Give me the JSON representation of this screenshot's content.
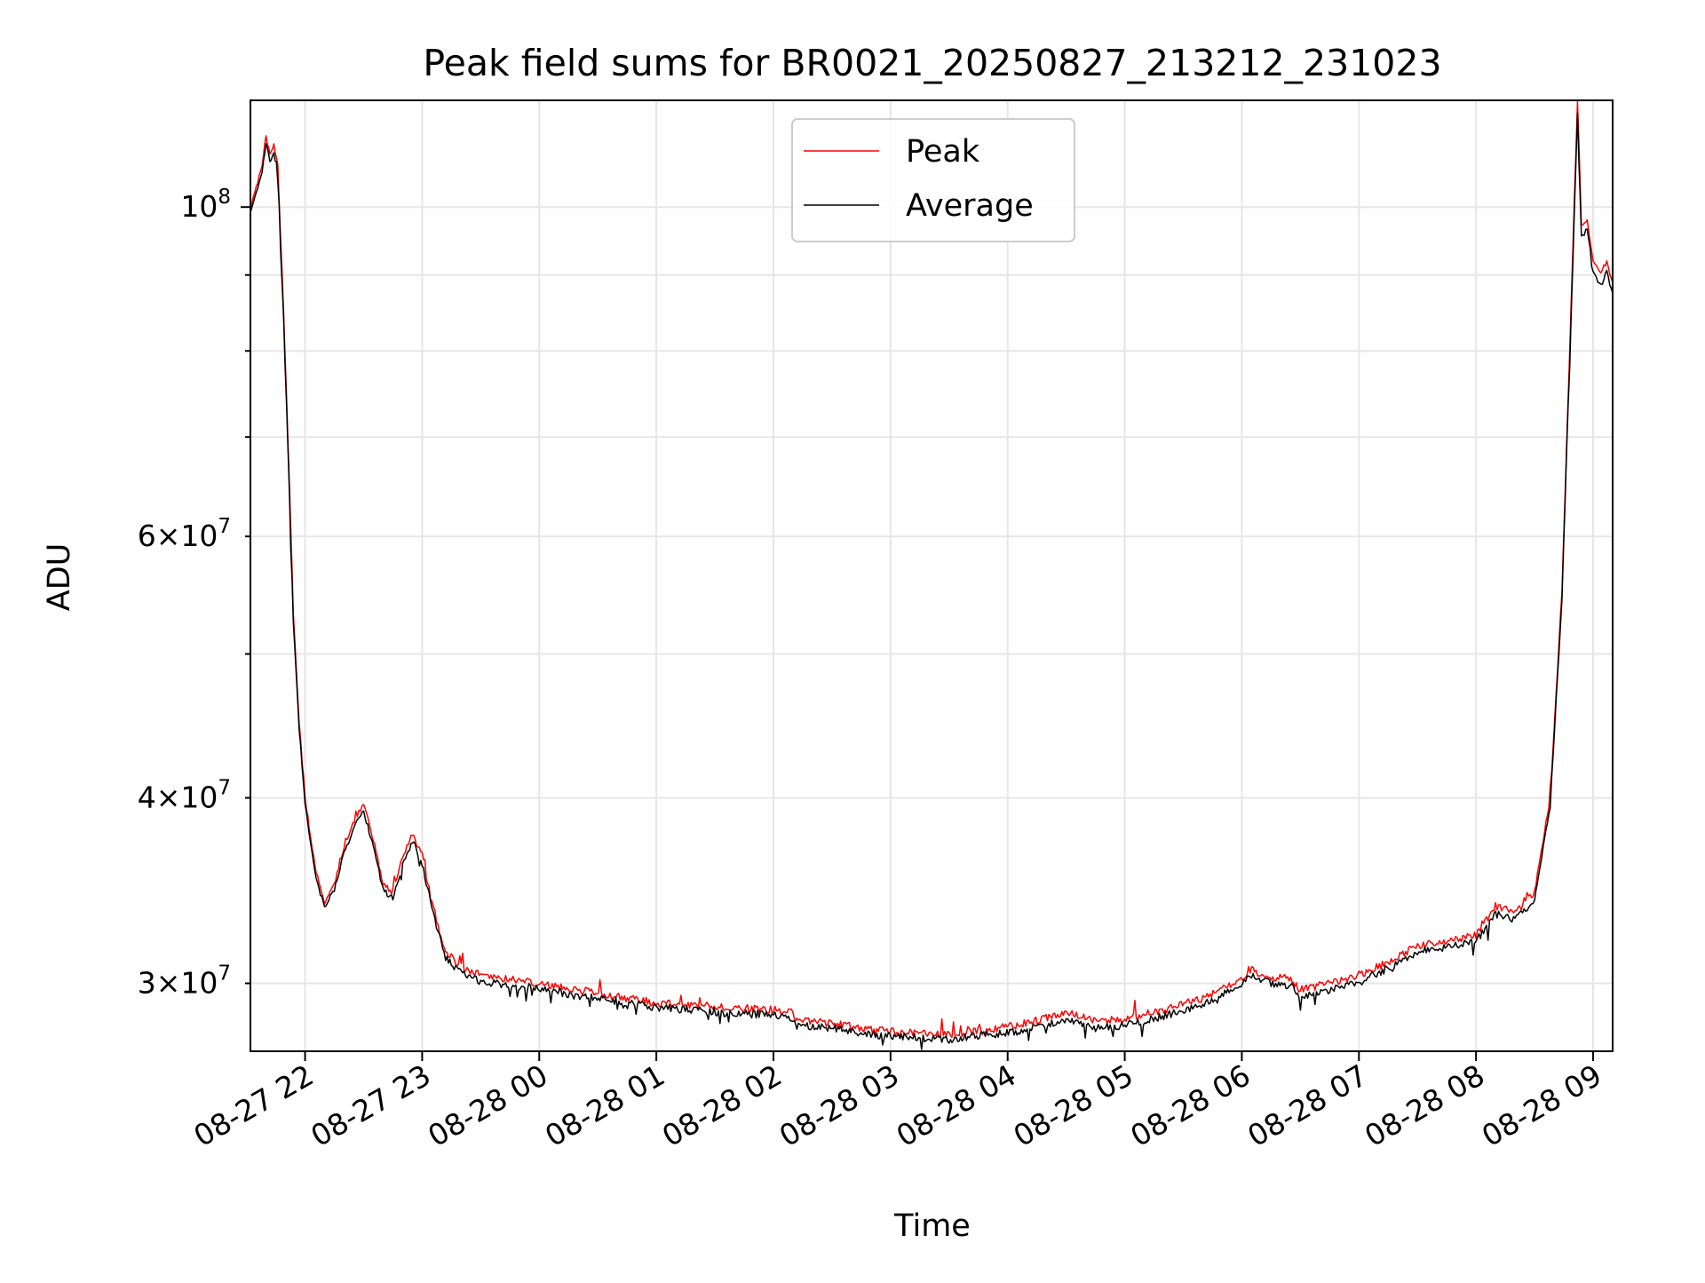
{
  "chart_data": {
    "type": "line",
    "title": "Peak field sums for BR0021_20250827_213212_231023",
    "xlabel": "Time",
    "ylabel": "ADU",
    "y_scale": "log",
    "ylim": [
      27000000,
      118000000
    ],
    "xlim": [
      "2025-08-27T21:32",
      "2025-08-28T09:10"
    ],
    "x_ticks": [
      {
        "value": "2025-08-27T22:00",
        "label": "08-27 22"
      },
      {
        "value": "2025-08-27T23:00",
        "label": "08-27 23"
      },
      {
        "value": "2025-08-28T00:00",
        "label": "08-28 00"
      },
      {
        "value": "2025-08-28T01:00",
        "label": "08-28 01"
      },
      {
        "value": "2025-08-28T02:00",
        "label": "08-28 02"
      },
      {
        "value": "2025-08-28T03:00",
        "label": "08-28 03"
      },
      {
        "value": "2025-08-28T04:00",
        "label": "08-28 04"
      },
      {
        "value": "2025-08-28T05:00",
        "label": "08-28 05"
      },
      {
        "value": "2025-08-28T06:00",
        "label": "08-28 06"
      },
      {
        "value": "2025-08-28T07:00",
        "label": "08-28 07"
      },
      {
        "value": "2025-08-28T08:00",
        "label": "08-28 08"
      },
      {
        "value": "2025-08-28T09:00",
        "label": "08-28 09"
      }
    ],
    "y_ticks_major": [
      {
        "value": 100000000,
        "base": "10",
        "exp": "8"
      }
    ],
    "y_ticks_minor_labeled": [
      {
        "value": 30000000,
        "coef": "3",
        "base": "10",
        "exp": "7"
      },
      {
        "value": 40000000,
        "coef": "4",
        "base": "10",
        "exp": "7"
      },
      {
        "value": 60000000,
        "coef": "6",
        "base": "10",
        "exp": "7"
      }
    ],
    "y_ticks_minor_unlabeled": [
      50000000,
      70000000,
      80000000,
      90000000
    ],
    "grid": true,
    "legend": {
      "placement": "upper center"
    },
    "series": [
      {
        "name": "Peak",
        "color": "#ff0000",
        "points": [
          [
            "2025-08-27T21:32",
            100000000
          ],
          [
            "2025-08-27T21:35",
            103000000
          ],
          [
            "2025-08-27T21:38",
            107000000
          ],
          [
            "2025-08-27T21:40",
            112000000
          ],
          [
            "2025-08-27T21:42",
            108000000
          ],
          [
            "2025-08-27T21:44",
            110000000
          ],
          [
            "2025-08-27T21:46",
            107000000
          ],
          [
            "2025-08-27T21:49",
            85000000
          ],
          [
            "2025-08-27T21:52",
            65000000
          ],
          [
            "2025-08-27T21:54",
            53000000
          ],
          [
            "2025-08-27T21:57",
            45000000
          ],
          [
            "2025-08-27T22:00",
            40000000
          ],
          [
            "2025-08-27T22:05",
            36000000
          ],
          [
            "2025-08-27T22:10",
            34000000
          ],
          [
            "2025-08-27T22:15",
            35000000
          ],
          [
            "2025-08-27T22:20",
            37000000
          ],
          [
            "2025-08-27T22:26",
            38800000
          ],
          [
            "2025-08-27T22:30",
            39600000
          ],
          [
            "2025-08-27T22:35",
            37500000
          ],
          [
            "2025-08-27T22:40",
            35000000
          ],
          [
            "2025-08-27T22:45",
            34500000
          ],
          [
            "2025-08-27T22:50",
            36500000
          ],
          [
            "2025-08-27T22:55",
            37800000
          ],
          [
            "2025-08-27T23:00",
            36500000
          ],
          [
            "2025-08-27T23:05",
            34000000
          ],
          [
            "2025-08-27T23:12",
            31500000
          ],
          [
            "2025-08-27T23:20",
            30800000
          ],
          [
            "2025-08-27T23:30",
            30400000
          ],
          [
            "2025-08-27T23:45",
            30200000
          ],
          [
            "2025-08-28T00:00",
            30000000
          ],
          [
            "2025-08-28T00:20",
            29700000
          ],
          [
            "2025-08-28T00:40",
            29400000
          ],
          [
            "2025-08-28T01:00",
            29100000
          ],
          [
            "2025-08-28T01:20",
            29000000
          ],
          [
            "2025-08-28T01:40",
            28900000
          ],
          [
            "2025-08-28T02:00",
            28800000
          ],
          [
            "2025-08-28T02:10",
            28700000
          ],
          [
            "2025-08-28T02:12",
            28300000
          ],
          [
            "2025-08-28T02:30",
            28200000
          ],
          [
            "2025-08-28T02:50",
            27900000
          ],
          [
            "2025-08-28T03:10",
            27800000
          ],
          [
            "2025-08-28T03:30",
            27700000
          ],
          [
            "2025-08-28T03:50",
            27900000
          ],
          [
            "2025-08-28T04:10",
            28200000
          ],
          [
            "2025-08-28T04:30",
            28700000
          ],
          [
            "2025-08-28T04:45",
            28300000
          ],
          [
            "2025-08-28T05:00",
            28400000
          ],
          [
            "2025-08-28T05:20",
            28800000
          ],
          [
            "2025-08-28T05:40",
            29300000
          ],
          [
            "2025-08-28T05:55",
            30000000
          ],
          [
            "2025-08-28T06:05",
            30600000
          ],
          [
            "2025-08-28T06:15",
            30300000
          ],
          [
            "2025-08-28T06:25",
            30200000
          ],
          [
            "2025-08-28T06:30",
            29700000
          ],
          [
            "2025-08-28T06:45",
            30000000
          ],
          [
            "2025-08-28T07:00",
            30400000
          ],
          [
            "2025-08-28T07:15",
            31000000
          ],
          [
            "2025-08-28T07:30",
            31800000
          ],
          [
            "2025-08-28T07:45",
            32000000
          ],
          [
            "2025-08-28T08:00",
            32300000
          ],
          [
            "2025-08-28T08:10",
            33800000
          ],
          [
            "2025-08-28T08:20",
            33500000
          ],
          [
            "2025-08-28T08:30",
            34500000
          ],
          [
            "2025-08-28T08:38",
            40000000
          ],
          [
            "2025-08-28T08:44",
            55000000
          ],
          [
            "2025-08-28T08:48",
            80000000
          ],
          [
            "2025-08-28T08:52",
            118000000
          ],
          [
            "2025-08-28T08:54",
            97000000
          ],
          [
            "2025-08-28T08:57",
            98000000
          ],
          [
            "2025-08-28T09:00",
            92000000
          ],
          [
            "2025-08-28T09:04",
            90000000
          ],
          [
            "2025-08-28T09:07",
            92000000
          ],
          [
            "2025-08-28T09:10",
            89000000
          ]
        ]
      },
      {
        "name": "Average",
        "color": "#000000",
        "points": [
          [
            "2025-08-27T21:32",
            99500000
          ],
          [
            "2025-08-27T21:35",
            102000000
          ],
          [
            "2025-08-27T21:38",
            106000000
          ],
          [
            "2025-08-27T21:40",
            110500000
          ],
          [
            "2025-08-27T21:42",
            107000000
          ],
          [
            "2025-08-27T21:44",
            108500000
          ],
          [
            "2025-08-27T21:46",
            106000000
          ],
          [
            "2025-08-27T21:49",
            84000000
          ],
          [
            "2025-08-27T21:52",
            64000000
          ],
          [
            "2025-08-27T21:54",
            52500000
          ],
          [
            "2025-08-27T21:57",
            44500000
          ],
          [
            "2025-08-27T22:00",
            39600000
          ],
          [
            "2025-08-27T22:05",
            35600000
          ],
          [
            "2025-08-27T22:10",
            33700000
          ],
          [
            "2025-08-27T22:15",
            34700000
          ],
          [
            "2025-08-27T22:20",
            36700000
          ],
          [
            "2025-08-27T22:26",
            38400000
          ],
          [
            "2025-08-27T22:30",
            39200000
          ],
          [
            "2025-08-27T22:35",
            37100000
          ],
          [
            "2025-08-27T22:40",
            34700000
          ],
          [
            "2025-08-27T22:45",
            34200000
          ],
          [
            "2025-08-27T22:50",
            36100000
          ],
          [
            "2025-08-27T22:55",
            37400000
          ],
          [
            "2025-08-27T23:00",
            36100000
          ],
          [
            "2025-08-27T23:05",
            33700000
          ],
          [
            "2025-08-27T23:12",
            31200000
          ],
          [
            "2025-08-27T23:20",
            30500000
          ],
          [
            "2025-08-27T23:30",
            30100000
          ],
          [
            "2025-08-27T23:45",
            29900000
          ],
          [
            "2025-08-28T00:00",
            29800000
          ],
          [
            "2025-08-28T00:20",
            29400000
          ],
          [
            "2025-08-28T00:40",
            29200000
          ],
          [
            "2025-08-28T01:00",
            28900000
          ],
          [
            "2025-08-28T01:20",
            28800000
          ],
          [
            "2025-08-28T01:40",
            28600000
          ],
          [
            "2025-08-28T02:00",
            28600000
          ],
          [
            "2025-08-28T02:10",
            28400000
          ],
          [
            "2025-08-28T02:12",
            28100000
          ],
          [
            "2025-08-28T02:30",
            28000000
          ],
          [
            "2025-08-28T02:50",
            27700000
          ],
          [
            "2025-08-28T03:10",
            27600000
          ],
          [
            "2025-08-28T03:30",
            27500000
          ],
          [
            "2025-08-28T03:50",
            27700000
          ],
          [
            "2025-08-28T04:10",
            27900000
          ],
          [
            "2025-08-28T04:30",
            28400000
          ],
          [
            "2025-08-28T04:45",
            28000000
          ],
          [
            "2025-08-28T05:00",
            28100000
          ],
          [
            "2025-08-28T05:20",
            28500000
          ],
          [
            "2025-08-28T05:40",
            29000000
          ],
          [
            "2025-08-28T05:55",
            29700000
          ],
          [
            "2025-08-28T06:05",
            30300000
          ],
          [
            "2025-08-28T06:15",
            30000000
          ],
          [
            "2025-08-28T06:25",
            29900000
          ],
          [
            "2025-08-28T06:30",
            29400000
          ],
          [
            "2025-08-28T06:45",
            29700000
          ],
          [
            "2025-08-28T07:00",
            30100000
          ],
          [
            "2025-08-28T07:15",
            30700000
          ],
          [
            "2025-08-28T07:30",
            31500000
          ],
          [
            "2025-08-28T07:45",
            31700000
          ],
          [
            "2025-08-28T08:00",
            32000000
          ],
          [
            "2025-08-28T08:10",
            33400000
          ],
          [
            "2025-08-28T08:20",
            33100000
          ],
          [
            "2025-08-28T08:30",
            34100000
          ],
          [
            "2025-08-28T08:38",
            39500000
          ],
          [
            "2025-08-28T08:44",
            54500000
          ],
          [
            "2025-08-28T08:48",
            79000000
          ],
          [
            "2025-08-28T08:52",
            116000000
          ],
          [
            "2025-08-28T08:54",
            95500000
          ],
          [
            "2025-08-28T08:57",
            96500000
          ],
          [
            "2025-08-28T09:00",
            90500000
          ],
          [
            "2025-08-28T09:04",
            88500000
          ],
          [
            "2025-08-28T09:07",
            90500000
          ],
          [
            "2025-08-28T09:10",
            87500000
          ]
        ]
      }
    ]
  }
}
